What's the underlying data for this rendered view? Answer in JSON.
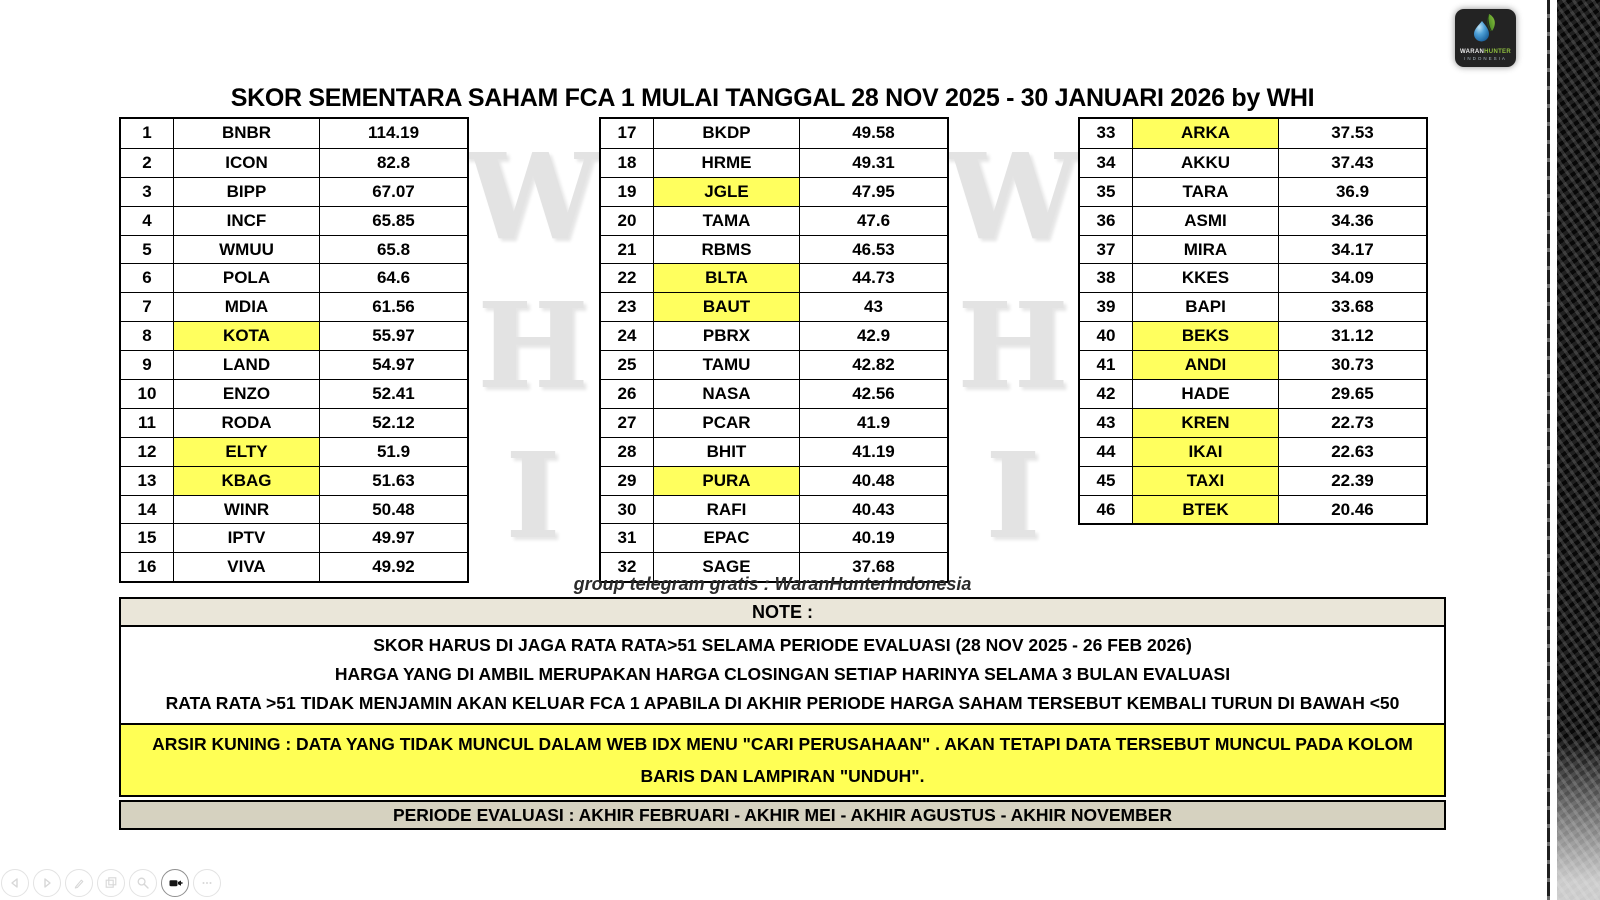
{
  "title": "SKOR SEMENTARA SAHAM FCA 1 MULAI TANGGAL 28 NOV 2025 - 30 JANUARI 2026 by WHI",
  "watermark": {
    "letters": [
      "W",
      "H",
      "I"
    ]
  },
  "logo": {
    "name1": "WARAN",
    "name2": "HUNTER",
    "sub": "INDONESIA"
  },
  "telegram_line": "group telegram gratis : WaranHunterIndonesia",
  "tables": [
    {
      "rows": [
        {
          "rank": 1,
          "ticker": "BNBR",
          "score": "114.19",
          "highlight": false
        },
        {
          "rank": 2,
          "ticker": "ICON",
          "score": "82.8",
          "highlight": false
        },
        {
          "rank": 3,
          "ticker": "BIPP",
          "score": "67.07",
          "highlight": false
        },
        {
          "rank": 4,
          "ticker": "INCF",
          "score": "65.85",
          "highlight": false
        },
        {
          "rank": 5,
          "ticker": "WMUU",
          "score": "65.8",
          "highlight": false
        },
        {
          "rank": 6,
          "ticker": "POLA",
          "score": "64.6",
          "highlight": false
        },
        {
          "rank": 7,
          "ticker": "MDIA",
          "score": "61.56",
          "highlight": false
        },
        {
          "rank": 8,
          "ticker": "KOTA",
          "score": "55.97",
          "highlight": true
        },
        {
          "rank": 9,
          "ticker": "LAND",
          "score": "54.97",
          "highlight": false
        },
        {
          "rank": 10,
          "ticker": "ENZO",
          "score": "52.41",
          "highlight": false
        },
        {
          "rank": 11,
          "ticker": "RODA",
          "score": "52.12",
          "highlight": false
        },
        {
          "rank": 12,
          "ticker": "ELTY",
          "score": "51.9",
          "highlight": true
        },
        {
          "rank": 13,
          "ticker": "KBAG",
          "score": "51.63",
          "highlight": true
        },
        {
          "rank": 14,
          "ticker": "WINR",
          "score": "50.48",
          "highlight": false
        },
        {
          "rank": 15,
          "ticker": "IPTV",
          "score": "49.97",
          "highlight": false
        },
        {
          "rank": 16,
          "ticker": "VIVA",
          "score": "49.92",
          "highlight": false
        }
      ]
    },
    {
      "rows": [
        {
          "rank": 17,
          "ticker": "BKDP",
          "score": "49.58",
          "highlight": false
        },
        {
          "rank": 18,
          "ticker": "HRME",
          "score": "49.31",
          "highlight": false
        },
        {
          "rank": 19,
          "ticker": "JGLE",
          "score": "47.95",
          "highlight": true
        },
        {
          "rank": 20,
          "ticker": "TAMA",
          "score": "47.6",
          "highlight": false
        },
        {
          "rank": 21,
          "ticker": "RBMS",
          "score": "46.53",
          "highlight": false
        },
        {
          "rank": 22,
          "ticker": "BLTA",
          "score": "44.73",
          "highlight": true
        },
        {
          "rank": 23,
          "ticker": "BAUT",
          "score": "43",
          "highlight": true
        },
        {
          "rank": 24,
          "ticker": "PBRX",
          "score": "42.9",
          "highlight": false
        },
        {
          "rank": 25,
          "ticker": "TAMU",
          "score": "42.82",
          "highlight": false
        },
        {
          "rank": 26,
          "ticker": "NASA",
          "score": "42.56",
          "highlight": false
        },
        {
          "rank": 27,
          "ticker": "PCAR",
          "score": "41.9",
          "highlight": false
        },
        {
          "rank": 28,
          "ticker": "BHIT",
          "score": "41.19",
          "highlight": false
        },
        {
          "rank": 29,
          "ticker": "PURA",
          "score": "40.48",
          "highlight": true
        },
        {
          "rank": 30,
          "ticker": "RAFI",
          "score": "40.43",
          "highlight": false
        },
        {
          "rank": 31,
          "ticker": "EPAC",
          "score": "40.19",
          "highlight": false
        },
        {
          "rank": 32,
          "ticker": "SAGE",
          "score": "37.68",
          "highlight": false
        }
      ]
    },
    {
      "rows": [
        {
          "rank": 33,
          "ticker": "ARKA",
          "score": "37.53",
          "highlight": true
        },
        {
          "rank": 34,
          "ticker": "AKKU",
          "score": "37.43",
          "highlight": false
        },
        {
          "rank": 35,
          "ticker": "TARA",
          "score": "36.9",
          "highlight": false
        },
        {
          "rank": 36,
          "ticker": "ASMI",
          "score": "34.36",
          "highlight": false
        },
        {
          "rank": 37,
          "ticker": "MIRA",
          "score": "34.17",
          "highlight": false
        },
        {
          "rank": 38,
          "ticker": "KKES",
          "score": "34.09",
          "highlight": false
        },
        {
          "rank": 39,
          "ticker": "BAPI",
          "score": "33.68",
          "highlight": false
        },
        {
          "rank": 40,
          "ticker": "BEKS",
          "score": "31.12",
          "highlight": true
        },
        {
          "rank": 41,
          "ticker": "ANDI",
          "score": "30.73",
          "highlight": true
        },
        {
          "rank": 42,
          "ticker": "HADE",
          "score": "29.65",
          "highlight": false
        },
        {
          "rank": 43,
          "ticker": "KREN",
          "score": "22.73",
          "highlight": true
        },
        {
          "rank": 44,
          "ticker": "IKAI",
          "score": "22.63",
          "highlight": true
        },
        {
          "rank": 45,
          "ticker": "TAXI",
          "score": "22.39",
          "highlight": true
        },
        {
          "rank": 46,
          "ticker": "BTEK",
          "score": "20.46",
          "highlight": true
        }
      ]
    }
  ],
  "note": {
    "header": "NOTE :",
    "lines": [
      "SKOR HARUS DI JAGA RATA RATA>51 SELAMA PERIODE EVALUASI (28 NOV 2025 - 26 FEB 2026)",
      "HARGA YANG DI AMBIL MERUPAKAN HARGA CLOSINGAN SETIAP HARINYA SELAMA 3 BULAN EVALUASI",
      "RATA RATA >51 TIDAK MENJAMIN AKAN KELUAR FCA 1 APABILA DI AKHIR PERIODE HARGA SAHAM TERSEBUT KEMBALI TURUN DI BAWAH <50"
    ],
    "yellow_lines": [
      "ARSIR KUNING :  DATA YANG TIDAK MUNCUL DALAM WEB IDX MENU \"CARI PERUSAHAAN\" . AKAN TETAPI DATA TERSEBUT MUNCUL PADA KOLOM",
      "BARIS DAN LAMPIRAN \"UNDUH\"."
    ],
    "footer": "PERIODE EVALUASI : AKHIR FEBRUARI - AKHIR MEI - AKHIR AGUSTUS - AKHIR NOVEMBER"
  },
  "controls": [
    {
      "name": "previous-slide"
    },
    {
      "name": "next-slide"
    },
    {
      "name": "pen"
    },
    {
      "name": "see-all-slides"
    },
    {
      "name": "zoom"
    },
    {
      "name": "camera"
    },
    {
      "name": "more-options"
    }
  ],
  "colors": {
    "highlight_yellow": "#ffff5e",
    "note_header_beige": "#eae6d9",
    "note_footer_beige": "#d6d2c0",
    "arsir_yellow": "#ffff55",
    "watermark_gray": "#e3e3e3",
    "carbon_dark": "#141414"
  }
}
